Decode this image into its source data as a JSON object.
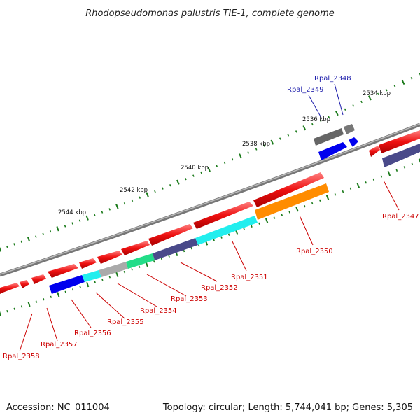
{
  "title": "Rhodopseudomonas palustris TIE-1, complete genome",
  "footer": {
    "accession": "Accession: NC_011004",
    "summary": "Topology: circular; Length: 5,744,041 bp; Genes: 5,305"
  },
  "ticks": [
    "2534 kbp",
    "2536 kbp",
    "2538 kbp",
    "2540 kbp",
    "2542 kbp",
    "2544 kbp"
  ],
  "genes": [
    "Rpal_2347",
    "Rpal_2348",
    "Rpal_2349",
    "Rpal_2350",
    "Rpal_2351",
    "Rpal_2352",
    "Rpal_2353",
    "Rpal_2354",
    "Rpal_2355",
    "Rpal_2356",
    "Rpal_2357",
    "Rpal_2358"
  ],
  "colors": {
    "backbone": "#888888",
    "cds_red": "#ee1111",
    "label_red": "#cc0000",
    "label_blue": "#1a1aaa",
    "dots": "#1a7a1a",
    "blue": "#0000ee",
    "navy": "#4a4a8a",
    "cyan": "#22eeee",
    "orange": "#ff8c00",
    "green": "#22dd88",
    "grey": "#aaaaaa",
    "dark_grey": "#666666"
  }
}
